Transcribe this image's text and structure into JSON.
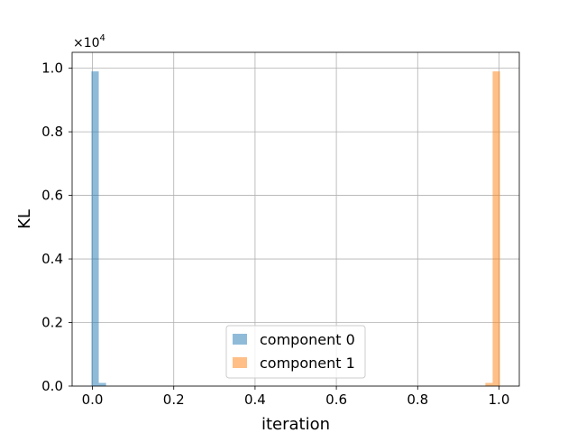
{
  "chart_data": {
    "type": "bar",
    "xlabel": "iteration",
    "ylabel": "KL",
    "offset_text": "×10",
    "offset_exponent": "4",
    "xlim": [
      -0.05,
      1.05
    ],
    "ylim": [
      0,
      10500
    ],
    "xticks": [
      0.0,
      0.2,
      0.4,
      0.6,
      0.8,
      1.0
    ],
    "xtick_labels": [
      "0.0",
      "0.2",
      "0.4",
      "0.6",
      "0.8",
      "1.0"
    ],
    "yticks": [
      0,
      2000,
      4000,
      6000,
      8000,
      10000
    ],
    "ytick_labels": [
      "0.0",
      "0.2",
      "0.4",
      "0.6",
      "0.8",
      "1.0"
    ],
    "grid": true,
    "legend_position": "bottom-center",
    "series": [
      {
        "name": "component 0",
        "color": "#1f77b4",
        "alpha": 0.5,
        "bins": [
          {
            "x0": -0.0025,
            "x1": 0.0155,
            "value": 9900
          },
          {
            "x0": 0.0155,
            "x1": 0.0335,
            "value": 100
          }
        ]
      },
      {
        "name": "component 1",
        "color": "#ff7f0e",
        "alpha": 0.5,
        "bins": [
          {
            "x0": 0.9665,
            "x1": 0.9845,
            "value": 100
          },
          {
            "x0": 0.9845,
            "x1": 1.0025,
            "value": 9900
          }
        ]
      }
    ]
  }
}
